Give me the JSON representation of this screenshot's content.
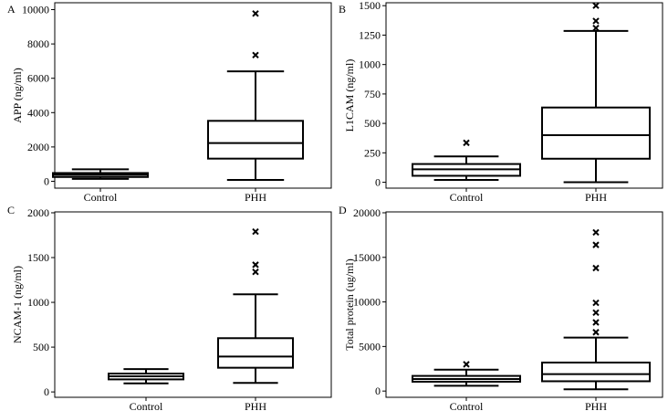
{
  "chart_data": [
    {
      "type": "boxplot",
      "panel_label": "A",
      "ylabel": "APP (ng/ml)",
      "categories": [
        "Control",
        "PHH"
      ],
      "ylim": [
        -400,
        10400
      ],
      "yticks": [
        0,
        2000,
        4000,
        6000,
        8000,
        10000
      ],
      "boxes": [
        {
          "name": "Control",
          "whisker_low": 140,
          "q1": 250,
          "median": 380,
          "q3": 480,
          "whisker_high": 700,
          "outliers": []
        },
        {
          "name": "PHH",
          "whisker_low": 80,
          "q1": 1320,
          "median": 2230,
          "q3": 3520,
          "whisker_high": 6400,
          "outliers": [
            7350,
            9770
          ]
        }
      ]
    },
    {
      "type": "boxplot",
      "panel_label": "B",
      "ylabel": "L1CAM (ng/ml)",
      "categories": [
        "Control",
        "PHH"
      ],
      "ylim": [
        -50,
        1525
      ],
      "yticks": [
        0,
        250,
        500,
        750,
        1000,
        1250,
        1500
      ],
      "boxes": [
        {
          "name": "Control",
          "whisker_low": 20,
          "q1": 55,
          "median": 110,
          "q3": 155,
          "whisker_high": 220,
          "outliers": [
            335
          ]
        },
        {
          "name": "PHH",
          "whisker_low": 0,
          "q1": 200,
          "median": 400,
          "q3": 635,
          "whisker_high": 1285,
          "outliers": [
            1310,
            1370,
            1500
          ]
        }
      ]
    },
    {
      "type": "boxplot",
      "panel_label": "C",
      "ylabel": "NCAM-1 (ng/ml)",
      "categories": [
        "Control",
        "PHH"
      ],
      "ylim": [
        -60,
        2010
      ],
      "yticks": [
        0,
        500,
        1000,
        1500,
        2000
      ],
      "boxes": [
        {
          "name": "Control",
          "whisker_low": 95,
          "q1": 140,
          "median": 175,
          "q3": 205,
          "whisker_high": 255,
          "outliers": []
        },
        {
          "name": "PHH",
          "whisker_low": 100,
          "q1": 270,
          "median": 395,
          "q3": 600,
          "whisker_high": 1090,
          "outliers": [
            1340,
            1420,
            1790
          ]
        }
      ]
    },
    {
      "type": "boxplot",
      "panel_label": "D",
      "ylabel": "Total protein (ug/ml)",
      "categories": [
        "Control",
        "PHH"
      ],
      "ylim": [
        -700,
        20100
      ],
      "yticks": [
        0,
        5000,
        10000,
        15000,
        20000
      ],
      "boxes": [
        {
          "name": "Control",
          "whisker_low": 600,
          "q1": 1050,
          "median": 1350,
          "q3": 1700,
          "whisker_high": 2400,
          "outliers": [
            3000
          ]
        },
        {
          "name": "PHH",
          "whisker_low": 200,
          "q1": 1100,
          "median": 1900,
          "q3": 3200,
          "whisker_high": 6000,
          "outliers": [
            6600,
            7700,
            8800,
            9900,
            13800,
            16400,
            17800
          ]
        }
      ]
    }
  ]
}
